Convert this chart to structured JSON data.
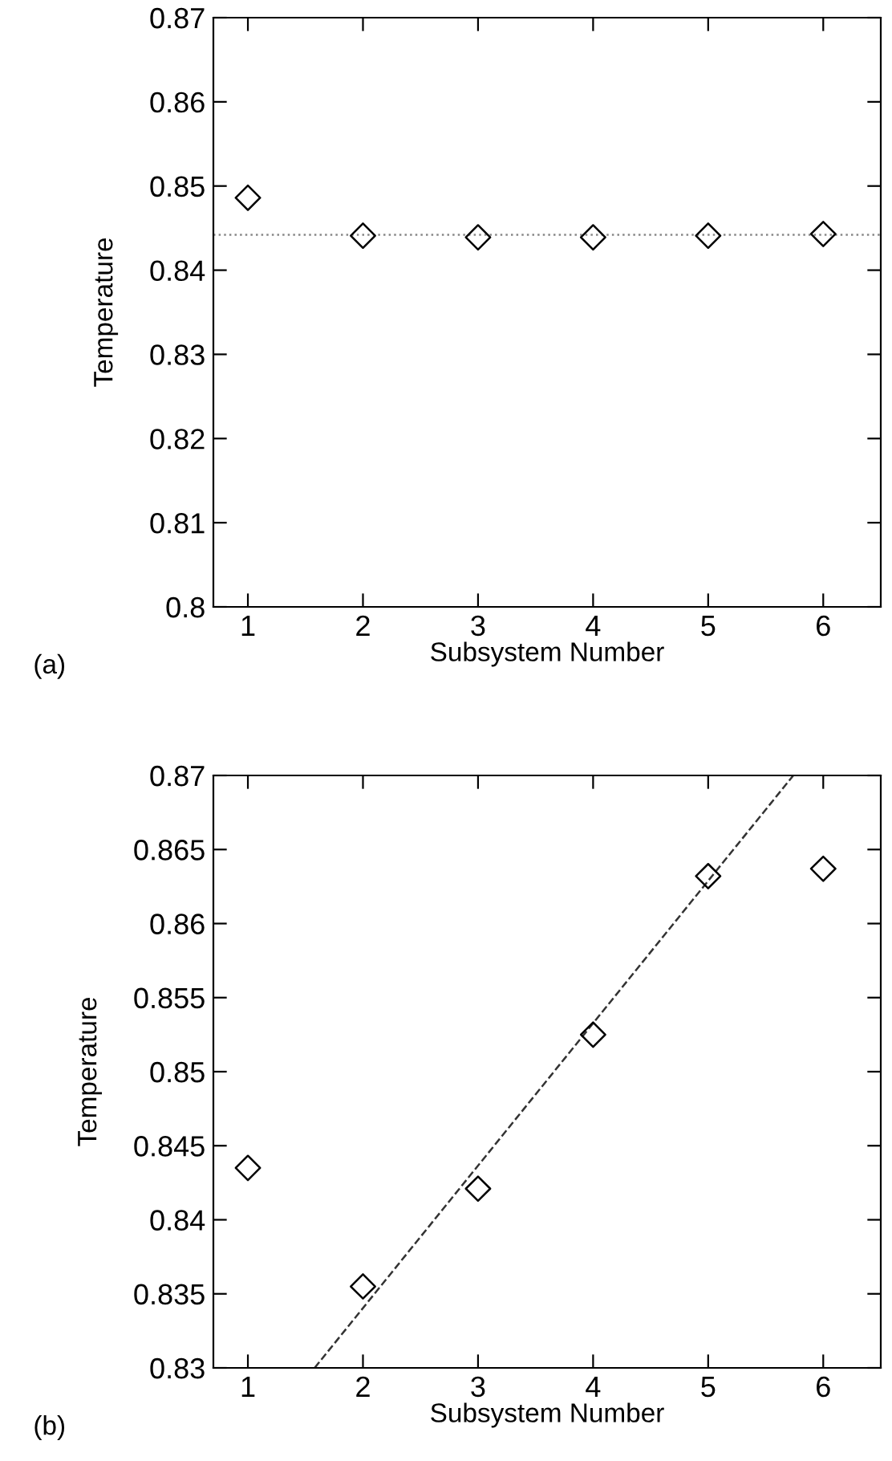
{
  "chart_data": [
    {
      "type": "scatter",
      "ylabel": "Temperature",
      "xlabel": "Subsystem Number",
      "annotations": [
        "(a)"
      ],
      "marker": "diamond",
      "series": [
        {
          "color": "#000000",
          "x": [
            1,
            2,
            3,
            4,
            5,
            6
          ],
          "values": [
            0.8486,
            0.8441,
            0.8439,
            0.8439,
            0.8441,
            0.8443
          ]
        }
      ],
      "ref_lines": [
        {
          "axis": "y",
          "value": 0.8442,
          "color": "#888888",
          "line_style": "dotted"
        }
      ],
      "xlim": [
        0.7,
        6.5
      ],
      "xticks": [
        1,
        2,
        3,
        4,
        5,
        6
      ],
      "ylim": [
        0.8,
        0.87
      ],
      "yticks": [
        {
          "value": 0.8,
          "label": "0.8"
        },
        0.81,
        0.82,
        0.83,
        0.84,
        0.85,
        0.86,
        0.87
      ],
      "grid": false
    },
    {
      "type": "scatter",
      "ylabel": "Temperature",
      "xlabel": "Subsystem Number",
      "annotations": [
        "(b)"
      ],
      "marker": "diamond",
      "series": [
        {
          "color": "#000000",
          "x": [
            1,
            2,
            3,
            4,
            5,
            6
          ],
          "values": [
            0.8435,
            0.8355,
            0.8421,
            0.8525,
            0.8632,
            0.8637
          ]
        },
        {
          "type": "line",
          "color": "#333333",
          "line_style": "dashed",
          "marker": "none",
          "x": [
            1.58,
            5.74
          ],
          "values": [
            0.83,
            0.87
          ]
        }
      ],
      "xlim": [
        0.7,
        6.5
      ],
      "xticks": [
        1,
        2,
        3,
        4,
        5,
        6
      ],
      "ylim": [
        0.83,
        0.87
      ],
      "yticks": [
        0.83,
        0.835,
        0.84,
        0.845,
        0.85,
        0.855,
        0.86,
        0.865,
        0.87
      ],
      "grid": false
    }
  ]
}
